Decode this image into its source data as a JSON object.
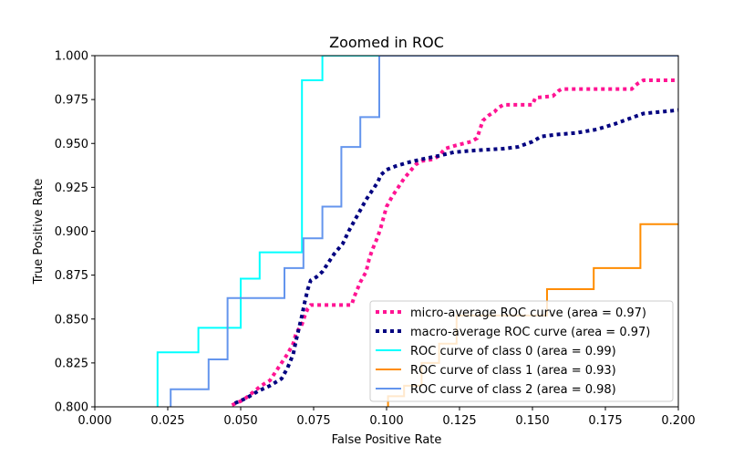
{
  "chart_data": {
    "type": "line",
    "title": "Zoomed in ROC",
    "xlabel": "False Positive Rate",
    "ylabel": "True Positive Rate",
    "xlim": [
      0.0,
      0.2
    ],
    "ylim": [
      0.8,
      1.0
    ],
    "xticks": [
      "0.000",
      "0.025",
      "0.050",
      "0.075",
      "0.100",
      "0.125",
      "0.150",
      "0.175",
      "0.200"
    ],
    "yticks": [
      "0.800",
      "0.825",
      "0.850",
      "0.875",
      "0.900",
      "0.925",
      "0.950",
      "0.975",
      "1.000"
    ],
    "grid": false,
    "legend_position": "lower-right",
    "series": [
      {
        "name": "micro-average ROC curve (area = 0.97)",
        "color": "#ff1493",
        "style": "dotted",
        "points": [
          [
            0.047,
            0.801
          ],
          [
            0.051,
            0.804
          ],
          [
            0.054,
            0.808
          ],
          [
            0.057,
            0.812
          ],
          [
            0.06,
            0.815
          ],
          [
            0.062,
            0.82
          ],
          [
            0.064,
            0.825
          ],
          [
            0.066,
            0.83
          ],
          [
            0.068,
            0.836
          ],
          [
            0.069,
            0.842
          ],
          [
            0.071,
            0.847
          ],
          [
            0.072,
            0.852
          ],
          [
            0.073,
            0.856
          ],
          [
            0.074,
            0.858
          ],
          [
            0.088,
            0.858
          ],
          [
            0.089,
            0.863
          ],
          [
            0.09,
            0.867
          ],
          [
            0.091,
            0.871
          ],
          [
            0.093,
            0.877
          ],
          [
            0.094,
            0.884
          ],
          [
            0.095,
            0.889
          ],
          [
            0.096,
            0.893
          ],
          [
            0.097,
            0.897
          ],
          [
            0.098,
            0.902
          ],
          [
            0.099,
            0.908
          ],
          [
            0.1,
            0.914
          ],
          [
            0.102,
            0.92
          ],
          [
            0.104,
            0.925
          ],
          [
            0.106,
            0.93
          ],
          [
            0.108,
            0.934
          ],
          [
            0.11,
            0.938
          ],
          [
            0.112,
            0.94
          ],
          [
            0.116,
            0.941
          ],
          [
            0.118,
            0.943
          ],
          [
            0.12,
            0.947
          ],
          [
            0.124,
            0.949
          ],
          [
            0.129,
            0.951
          ],
          [
            0.131,
            0.953
          ],
          [
            0.132,
            0.958
          ],
          [
            0.133,
            0.963
          ],
          [
            0.135,
            0.966
          ],
          [
            0.137,
            0.968
          ],
          [
            0.138,
            0.97
          ],
          [
            0.14,
            0.972
          ],
          [
            0.15,
            0.972
          ],
          [
            0.151,
            0.976
          ],
          [
            0.157,
            0.977
          ],
          [
            0.159,
            0.98
          ],
          [
            0.16,
            0.981
          ],
          [
            0.184,
            0.981
          ],
          [
            0.186,
            0.984
          ],
          [
            0.188,
            0.986
          ],
          [
            0.2,
            0.986
          ]
        ]
      },
      {
        "name": "macro-average ROC curve (area = 0.97)",
        "color": "#000080",
        "style": "dotted",
        "points": [
          [
            0.048,
            0.802
          ],
          [
            0.052,
            0.805
          ],
          [
            0.056,
            0.809
          ],
          [
            0.06,
            0.812
          ],
          [
            0.064,
            0.816
          ],
          [
            0.066,
            0.822
          ],
          [
            0.068,
            0.83
          ],
          [
            0.069,
            0.838
          ],
          [
            0.07,
            0.845
          ],
          [
            0.071,
            0.852
          ],
          [
            0.072,
            0.86
          ],
          [
            0.073,
            0.867
          ],
          [
            0.074,
            0.872
          ],
          [
            0.076,
            0.874
          ],
          [
            0.078,
            0.877
          ],
          [
            0.08,
            0.882
          ],
          [
            0.082,
            0.887
          ],
          [
            0.085,
            0.893
          ],
          [
            0.087,
            0.9
          ],
          [
            0.089,
            0.906
          ],
          [
            0.091,
            0.912
          ],
          [
            0.093,
            0.918
          ],
          [
            0.095,
            0.923
          ],
          [
            0.097,
            0.928
          ],
          [
            0.098,
            0.932
          ],
          [
            0.1,
            0.935
          ],
          [
            0.103,
            0.937
          ],
          [
            0.107,
            0.939
          ],
          [
            0.112,
            0.941
          ],
          [
            0.118,
            0.943
          ],
          [
            0.123,
            0.945
          ],
          [
            0.13,
            0.946
          ],
          [
            0.14,
            0.947
          ],
          [
            0.145,
            0.948
          ],
          [
            0.15,
            0.951
          ],
          [
            0.153,
            0.954
          ],
          [
            0.158,
            0.955
          ],
          [
            0.165,
            0.956
          ],
          [
            0.172,
            0.958
          ],
          [
            0.178,
            0.961
          ],
          [
            0.183,
            0.964
          ],
          [
            0.188,
            0.967
          ],
          [
            0.194,
            0.968
          ],
          [
            0.2,
            0.969
          ]
        ]
      },
      {
        "name": "ROC curve of class 0 (area = 0.99)",
        "color": "#00ffff",
        "style": "solid",
        "points": [
          [
            0.0215,
            0.795
          ],
          [
            0.0215,
            0.831
          ],
          [
            0.0355,
            0.831
          ],
          [
            0.0355,
            0.845
          ],
          [
            0.05,
            0.845
          ],
          [
            0.05,
            0.873
          ],
          [
            0.0565,
            0.873
          ],
          [
            0.0565,
            0.888
          ],
          [
            0.071,
            0.888
          ],
          [
            0.071,
            0.986
          ],
          [
            0.078,
            0.986
          ],
          [
            0.078,
            1.0
          ],
          [
            0.2,
            1.0
          ]
        ]
      },
      {
        "name": "ROC curve of class 1 (area = 0.93)",
        "color": "#ff8c00",
        "style": "solid",
        "points": [
          [
            0.1005,
            0.795
          ],
          [
            0.1005,
            0.806
          ],
          [
            0.106,
            0.806
          ],
          [
            0.106,
            0.812
          ],
          [
            0.112,
            0.812
          ],
          [
            0.112,
            0.825
          ],
          [
            0.118,
            0.825
          ],
          [
            0.118,
            0.836
          ],
          [
            0.124,
            0.836
          ],
          [
            0.124,
            0.852
          ],
          [
            0.155,
            0.852
          ],
          [
            0.155,
            0.867
          ],
          [
            0.171,
            0.867
          ],
          [
            0.171,
            0.879
          ],
          [
            0.187,
            0.879
          ],
          [
            0.187,
            0.904
          ],
          [
            0.2,
            0.904
          ]
        ]
      },
      {
        "name": "ROC curve of class 2 (area = 0.98)",
        "color": "#6495ed",
        "style": "solid",
        "points": [
          [
            0.026,
            0.795
          ],
          [
            0.026,
            0.81
          ],
          [
            0.039,
            0.81
          ],
          [
            0.039,
            0.827
          ],
          [
            0.0455,
            0.827
          ],
          [
            0.0455,
            0.862
          ],
          [
            0.065,
            0.862
          ],
          [
            0.065,
            0.879
          ],
          [
            0.0715,
            0.879
          ],
          [
            0.0715,
            0.896
          ],
          [
            0.078,
            0.896
          ],
          [
            0.078,
            0.914
          ],
          [
            0.0845,
            0.914
          ],
          [
            0.0845,
            0.948
          ],
          [
            0.091,
            0.948
          ],
          [
            0.091,
            0.965
          ],
          [
            0.0975,
            0.965
          ],
          [
            0.0975,
            1.0
          ],
          [
            0.2,
            1.0
          ]
        ]
      }
    ]
  }
}
